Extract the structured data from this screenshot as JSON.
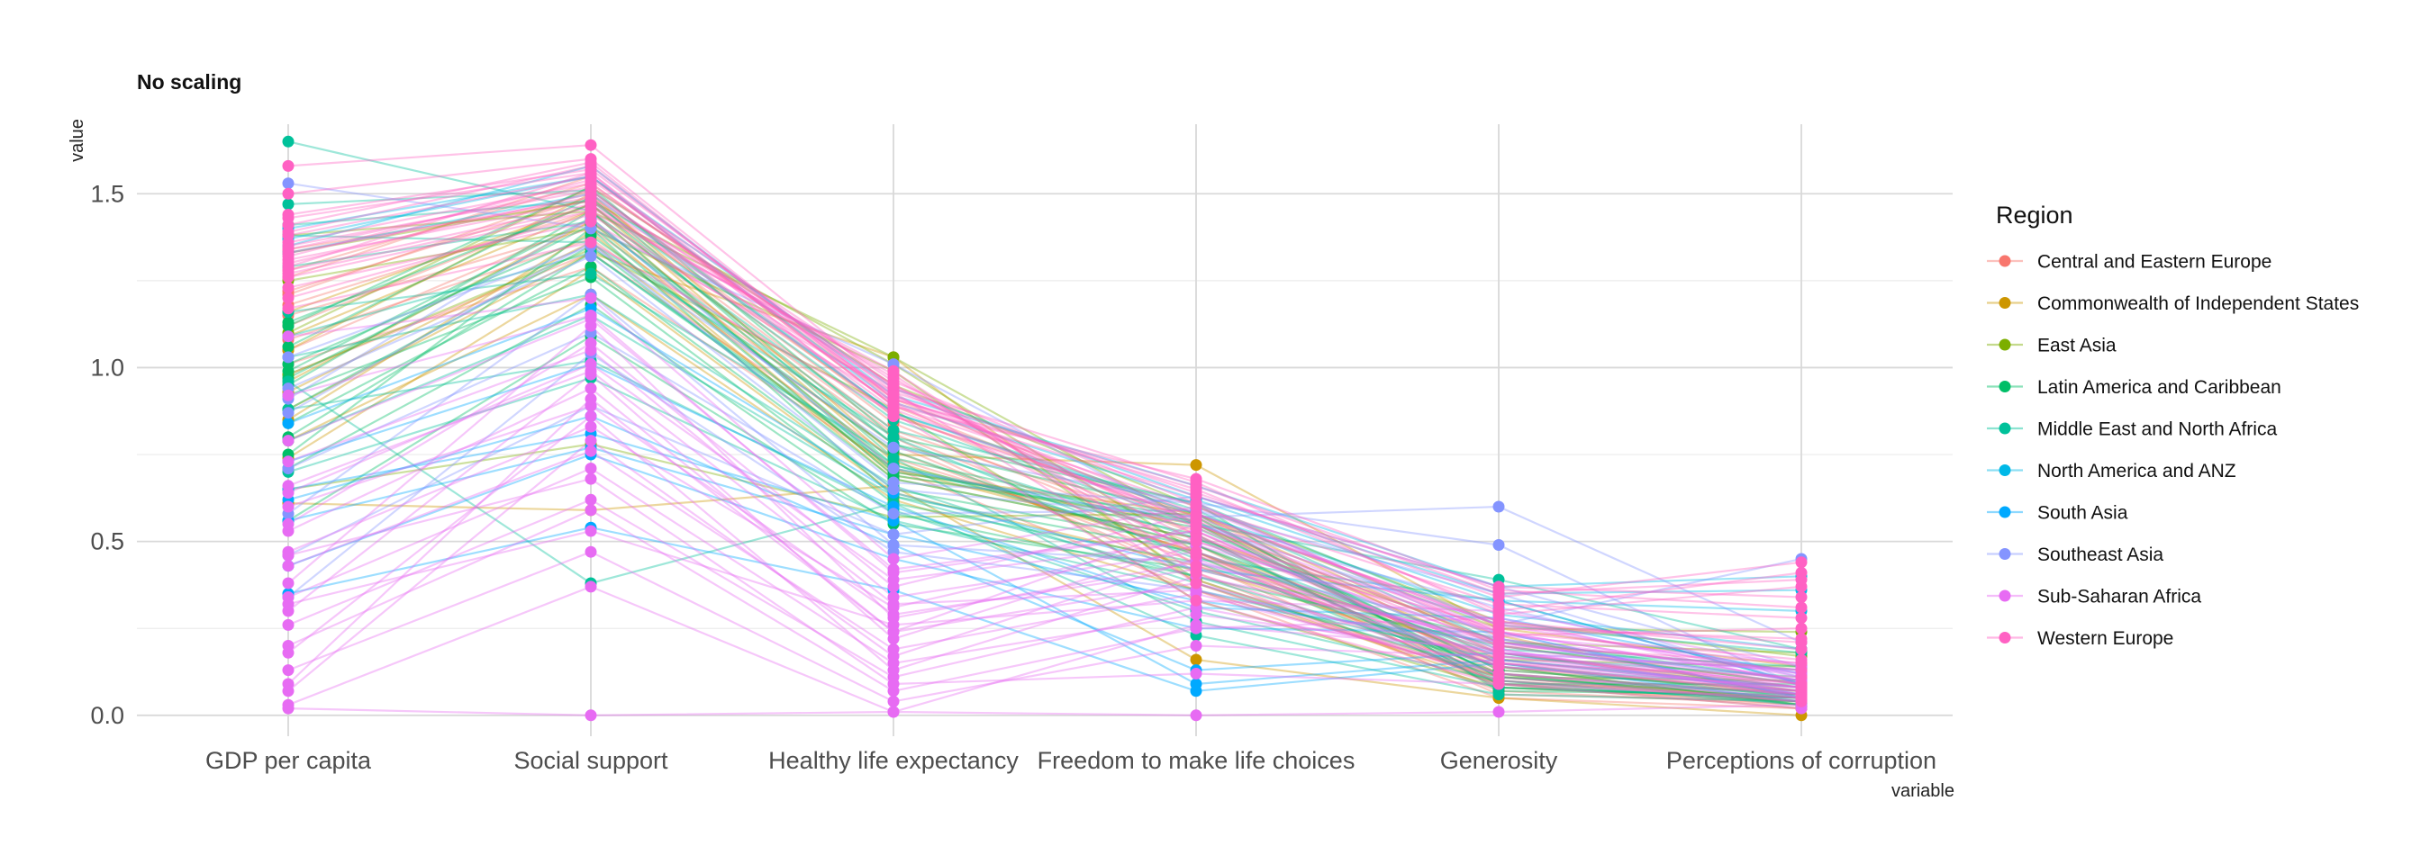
{
  "chart_data": {
    "type": "line",
    "title": "No scaling",
    "xlabel": "variable",
    "ylabel": "value",
    "categories": [
      "GDP per capita",
      "Social support",
      "Healthy life expectancy",
      "Freedom to make life choices",
      "Generosity",
      "Perceptions of corruption"
    ],
    "ylim": [
      -0.06,
      1.7
    ],
    "yticks": [
      0.0,
      0.5,
      1.0,
      1.5
    ],
    "ytick_labels": [
      "0.0",
      "0.5",
      "1.0",
      "1.5"
    ],
    "grid": true,
    "legend": {
      "title": "Region",
      "position": "right"
    },
    "series": [
      {
        "name": "Central and Eastern Europe",
        "color": "#F8766D",
        "lines": [
          [
            1.34,
            1.48,
            0.87,
            0.52,
            0.09,
            0.07
          ],
          [
            1.28,
            1.53,
            0.91,
            0.57,
            0.12,
            0.06
          ],
          [
            1.22,
            1.49,
            0.84,
            0.49,
            0.08,
            0.04
          ],
          [
            1.18,
            1.45,
            0.81,
            0.46,
            0.11,
            0.05
          ],
          [
            1.15,
            1.4,
            0.78,
            0.41,
            0.07,
            0.03
          ],
          [
            1.12,
            1.47,
            0.82,
            0.53,
            0.14,
            0.06
          ],
          [
            1.08,
            1.37,
            0.76,
            0.44,
            0.06,
            0.04
          ],
          [
            1.05,
            1.42,
            0.8,
            0.39,
            0.1,
            0.05
          ],
          [
            0.98,
            1.33,
            0.74,
            0.47,
            0.09,
            0.03
          ],
          [
            1.21,
            1.51,
            0.86,
            0.58,
            0.16,
            0.08
          ],
          [
            1.26,
            1.55,
            0.89,
            0.55,
            0.13,
            0.07
          ],
          [
            1.01,
            1.29,
            0.71,
            0.36,
            0.05,
            0.02
          ]
        ]
      },
      {
        "name": "Commonwealth of Independent States",
        "color": "#CD9600",
        "lines": [
          [
            1.16,
            1.47,
            0.73,
            0.47,
            0.12,
            0.04
          ],
          [
            0.96,
            1.42,
            0.69,
            0.55,
            0.18,
            0.07
          ],
          [
            0.85,
            1.39,
            0.68,
            0.51,
            0.23,
            0.05
          ],
          [
            0.74,
            1.28,
            0.64,
            0.43,
            0.14,
            0.03
          ],
          [
            1.05,
            1.5,
            0.75,
            0.72,
            0.25,
            0.14
          ],
          [
            0.88,
            1.33,
            1.03,
            0.38,
            0.09,
            0.02
          ],
          [
            0.61,
            0.59,
            0.66,
            0.16,
            0.05,
            0.0
          ],
          [
            1.09,
            1.45,
            0.71,
            0.49,
            0.15,
            0.06
          ],
          [
            0.79,
            1.21,
            0.62,
            0.36,
            0.11,
            0.04
          ],
          [
            0.93,
            1.36,
            0.7,
            0.58,
            0.2,
            0.09
          ]
        ]
      },
      {
        "name": "East Asia",
        "color": "#7CAE00",
        "lines": [
          [
            1.38,
            1.45,
            1.03,
            0.55,
            0.21,
            0.18
          ],
          [
            1.33,
            1.48,
            1.01,
            0.47,
            0.16,
            0.14
          ],
          [
            1.25,
            1.4,
            0.99,
            0.39,
            0.11,
            0.1
          ],
          [
            1.1,
            1.52,
            0.95,
            0.6,
            0.27,
            0.17
          ],
          [
            0.98,
            1.34,
            0.88,
            0.33,
            0.08,
            0.05
          ],
          [
            0.65,
            0.78,
            0.57,
            0.58,
            0.25,
            0.24
          ]
        ]
      },
      {
        "name": "Latin America and Caribbean",
        "color": "#00BE67",
        "lines": [
          [
            1.13,
            1.47,
            0.78,
            0.58,
            0.09,
            0.09
          ],
          [
            1.06,
            1.49,
            0.74,
            0.55,
            0.11,
            0.06
          ],
          [
            0.99,
            1.43,
            0.72,
            0.52,
            0.08,
            0.05
          ],
          [
            0.95,
            1.45,
            0.7,
            0.57,
            0.13,
            0.07
          ],
          [
            0.88,
            1.35,
            0.68,
            0.51,
            0.1,
            0.04
          ],
          [
            0.84,
            1.29,
            0.65,
            0.49,
            0.12,
            0.03
          ],
          [
            0.8,
            1.33,
            0.71,
            0.54,
            0.15,
            0.05
          ],
          [
            0.75,
            1.4,
            0.63,
            0.47,
            0.18,
            0.08
          ],
          [
            1.12,
            1.52,
            0.8,
            0.61,
            0.07,
            0.06
          ],
          [
            1.01,
            1.38,
            0.76,
            0.46,
            0.09,
            0.04
          ],
          [
            0.92,
            1.26,
            0.61,
            0.44,
            0.14,
            0.03
          ],
          [
            0.71,
            1.18,
            0.58,
            0.4,
            0.2,
            0.09
          ],
          [
            0.97,
            1.41,
            0.69,
            0.56,
            0.11,
            0.05
          ],
          [
            0.56,
            1.09,
            0.55,
            0.42,
            0.22,
            0.1
          ]
        ]
      },
      {
        "name": "Middle East and North Africa",
        "color": "#00C19A",
        "lines": [
          [
            1.65,
            1.45,
            0.82,
            0.61,
            0.26,
            0.18
          ],
          [
            1.47,
            1.51,
            0.87,
            0.59,
            0.21,
            0.13
          ],
          [
            1.38,
            1.36,
            0.8,
            0.45,
            0.33,
            0.09
          ],
          [
            1.29,
            1.42,
            0.78,
            0.51,
            0.19,
            0.14
          ],
          [
            1.16,
            1.27,
            0.74,
            0.27,
            0.08,
            0.05
          ],
          [
            1.03,
            1.21,
            0.66,
            0.38,
            0.12,
            0.06
          ],
          [
            0.96,
            0.38,
            0.61,
            0.23,
            0.06,
            0.04
          ],
          [
            0.88,
            1.02,
            0.59,
            0.3,
            0.1,
            0.03
          ],
          [
            0.79,
            1.15,
            0.63,
            0.4,
            0.14,
            0.08
          ],
          [
            0.7,
            0.97,
            0.56,
            0.36,
            0.16,
            0.07
          ],
          [
            1.41,
            1.48,
            0.85,
            0.55,
            0.39,
            0.19
          ],
          [
            1.09,
            1.33,
            0.72,
            0.49,
            0.17,
            0.11
          ]
        ]
      },
      {
        "name": "North America and ANZ",
        "color": "#00B8E7",
        "lines": [
          [
            1.4,
            1.55,
            0.9,
            0.62,
            0.33,
            0.3
          ],
          [
            1.35,
            1.58,
            0.92,
            0.66,
            0.37,
            0.4
          ],
          [
            1.33,
            1.5,
            0.87,
            0.58,
            0.29,
            0.19
          ],
          [
            1.37,
            1.55,
            0.94,
            0.63,
            0.35,
            0.36
          ]
        ]
      },
      {
        "name": "South Asia",
        "color": "#00A9FF",
        "lines": [
          [
            0.56,
            0.77,
            0.52,
            0.33,
            0.21,
            0.1
          ],
          [
            0.65,
            0.81,
            0.56,
            0.09,
            0.16,
            0.08
          ],
          [
            0.73,
            1.01,
            0.6,
            0.31,
            0.28,
            0.12
          ],
          [
            0.62,
            0.86,
            0.49,
            0.13,
            0.18,
            0.06
          ],
          [
            0.43,
            0.75,
            0.45,
            0.25,
            0.24,
            0.05
          ],
          [
            0.84,
            1.17,
            0.64,
            0.42,
            0.33,
            0.09
          ],
          [
            0.35,
            0.54,
            0.36,
            0.07,
            0.15,
            0.04
          ]
        ]
      },
      {
        "name": "Southeast Asia",
        "color": "#8494FF",
        "lines": [
          [
            1.53,
            1.4,
            1.01,
            0.55,
            0.26,
            0.45
          ],
          [
            1.03,
            1.35,
            0.77,
            0.61,
            0.49,
            0.08
          ],
          [
            0.94,
            1.32,
            0.65,
            0.57,
            0.6,
            0.21
          ],
          [
            0.91,
            1.43,
            0.71,
            0.55,
            0.31,
            0.11
          ],
          [
            0.87,
            1.36,
            0.67,
            0.61,
            0.22,
            0.06
          ],
          [
            0.71,
            1.1,
            0.58,
            0.59,
            0.35,
            0.09
          ],
          [
            0.58,
            1.21,
            0.49,
            0.44,
            0.24,
            0.05
          ],
          [
            0.46,
            0.89,
            0.52,
            0.63,
            0.37,
            0.14
          ],
          [
            0.34,
            1.04,
            0.47,
            0.36,
            0.18,
            0.13
          ]
        ]
      },
      {
        "name": "Sub-Saharan Africa",
        "color": "#E76BF3",
        "lines": [
          [
            1.09,
            1.2,
            0.45,
            0.6,
            0.24,
            0.1
          ],
          [
            0.92,
            1.15,
            0.41,
            0.53,
            0.15,
            0.08
          ],
          [
            0.73,
            1.05,
            0.34,
            0.47,
            0.19,
            0.06
          ],
          [
            0.6,
            0.89,
            0.29,
            0.42,
            0.21,
            0.09
          ],
          [
            0.53,
            0.94,
            0.24,
            0.38,
            0.16,
            0.07
          ],
          [
            0.47,
            0.83,
            0.31,
            0.51,
            0.27,
            0.11
          ],
          [
            0.43,
            0.76,
            0.19,
            0.35,
            0.12,
            0.05
          ],
          [
            0.38,
            1.12,
            0.28,
            0.44,
            0.2,
            0.08
          ],
          [
            0.34,
            0.71,
            0.15,
            0.29,
            0.18,
            0.13
          ],
          [
            0.3,
            0.98,
            0.22,
            0.49,
            0.24,
            0.1
          ],
          [
            0.26,
            0.62,
            0.11,
            0.31,
            0.15,
            0.06
          ],
          [
            0.2,
            0.59,
            0.07,
            0.25,
            0.28,
            0.09
          ],
          [
            0.18,
            0.86,
            0.13,
            0.4,
            0.22,
            0.12
          ],
          [
            0.13,
            0.47,
            0.04,
            0.2,
            0.17,
            0.07
          ],
          [
            0.09,
            0.91,
            0.24,
            0.55,
            0.23,
            0.15
          ],
          [
            0.07,
            0.79,
            0.17,
            0.45,
            0.14,
            0.08
          ],
          [
            0.03,
            0.37,
            0.01,
            0.26,
            0.19,
            0.05
          ],
          [
            0.02,
            0.0,
            0.01,
            0.0,
            0.01,
            0.03
          ],
          [
            0.55,
            1.07,
            0.37,
            0.58,
            0.26,
            0.12
          ],
          [
            0.66,
            0.99,
            0.32,
            0.36,
            0.11,
            0.04
          ],
          [
            0.79,
            1.14,
            0.42,
            0.53,
            0.18,
            0.09
          ],
          [
            0.46,
            0.68,
            0.09,
            0.12,
            0.09,
            0.02
          ],
          [
            0.32,
            0.53,
            0.26,
            0.33,
            0.3,
            0.14
          ],
          [
            0.64,
            1.01,
            0.39,
            0.5,
            0.21,
            0.1
          ]
        ]
      },
      {
        "name": "Western Europe",
        "color": "#FF61C3",
        "lines": [
          [
            1.58,
            1.64,
            0.94,
            0.67,
            0.29,
            0.37
          ],
          [
            1.5,
            1.6,
            0.91,
            0.65,
            0.3,
            0.41
          ],
          [
            1.44,
            1.57,
            0.93,
            0.64,
            0.34,
            0.44
          ],
          [
            1.41,
            1.59,
            0.9,
            0.63,
            0.37,
            0.34
          ],
          [
            1.38,
            1.55,
            0.89,
            0.6,
            0.32,
            0.28
          ],
          [
            1.36,
            1.53,
            0.92,
            0.58,
            0.26,
            0.21
          ],
          [
            1.35,
            1.51,
            0.88,
            0.56,
            0.24,
            0.16
          ],
          [
            1.33,
            1.49,
            0.97,
            0.46,
            0.18,
            0.08
          ],
          [
            1.31,
            1.48,
            0.95,
            0.52,
            0.15,
            0.11
          ],
          [
            1.29,
            1.56,
            0.86,
            0.57,
            0.27,
            0.19
          ],
          [
            1.27,
            1.46,
            0.98,
            0.41,
            0.12,
            0.06
          ],
          [
            1.23,
            1.42,
            0.93,
            0.38,
            0.1,
            0.04
          ],
          [
            1.2,
            1.44,
            0.9,
            0.47,
            0.14,
            0.07
          ],
          [
            1.17,
            1.36,
            0.87,
            0.33,
            0.09,
            0.05
          ],
          [
            1.32,
            1.54,
            0.96,
            0.61,
            0.23,
            0.25
          ],
          [
            1.39,
            1.58,
            0.91,
            0.66,
            0.35,
            0.39
          ],
          [
            1.43,
            1.56,
            0.89,
            0.68,
            0.36,
            0.31
          ],
          [
            1.3,
            1.5,
            0.94,
            0.55,
            0.21,
            0.13
          ],
          [
            1.26,
            1.45,
            0.99,
            0.43,
            0.17,
            0.09
          ],
          [
            1.34,
            1.52,
            0.95,
            0.5,
            0.25,
            0.22
          ],
          [
            1.28,
            1.47,
            0.92,
            0.54,
            0.2,
            0.15
          ]
        ]
      }
    ]
  }
}
